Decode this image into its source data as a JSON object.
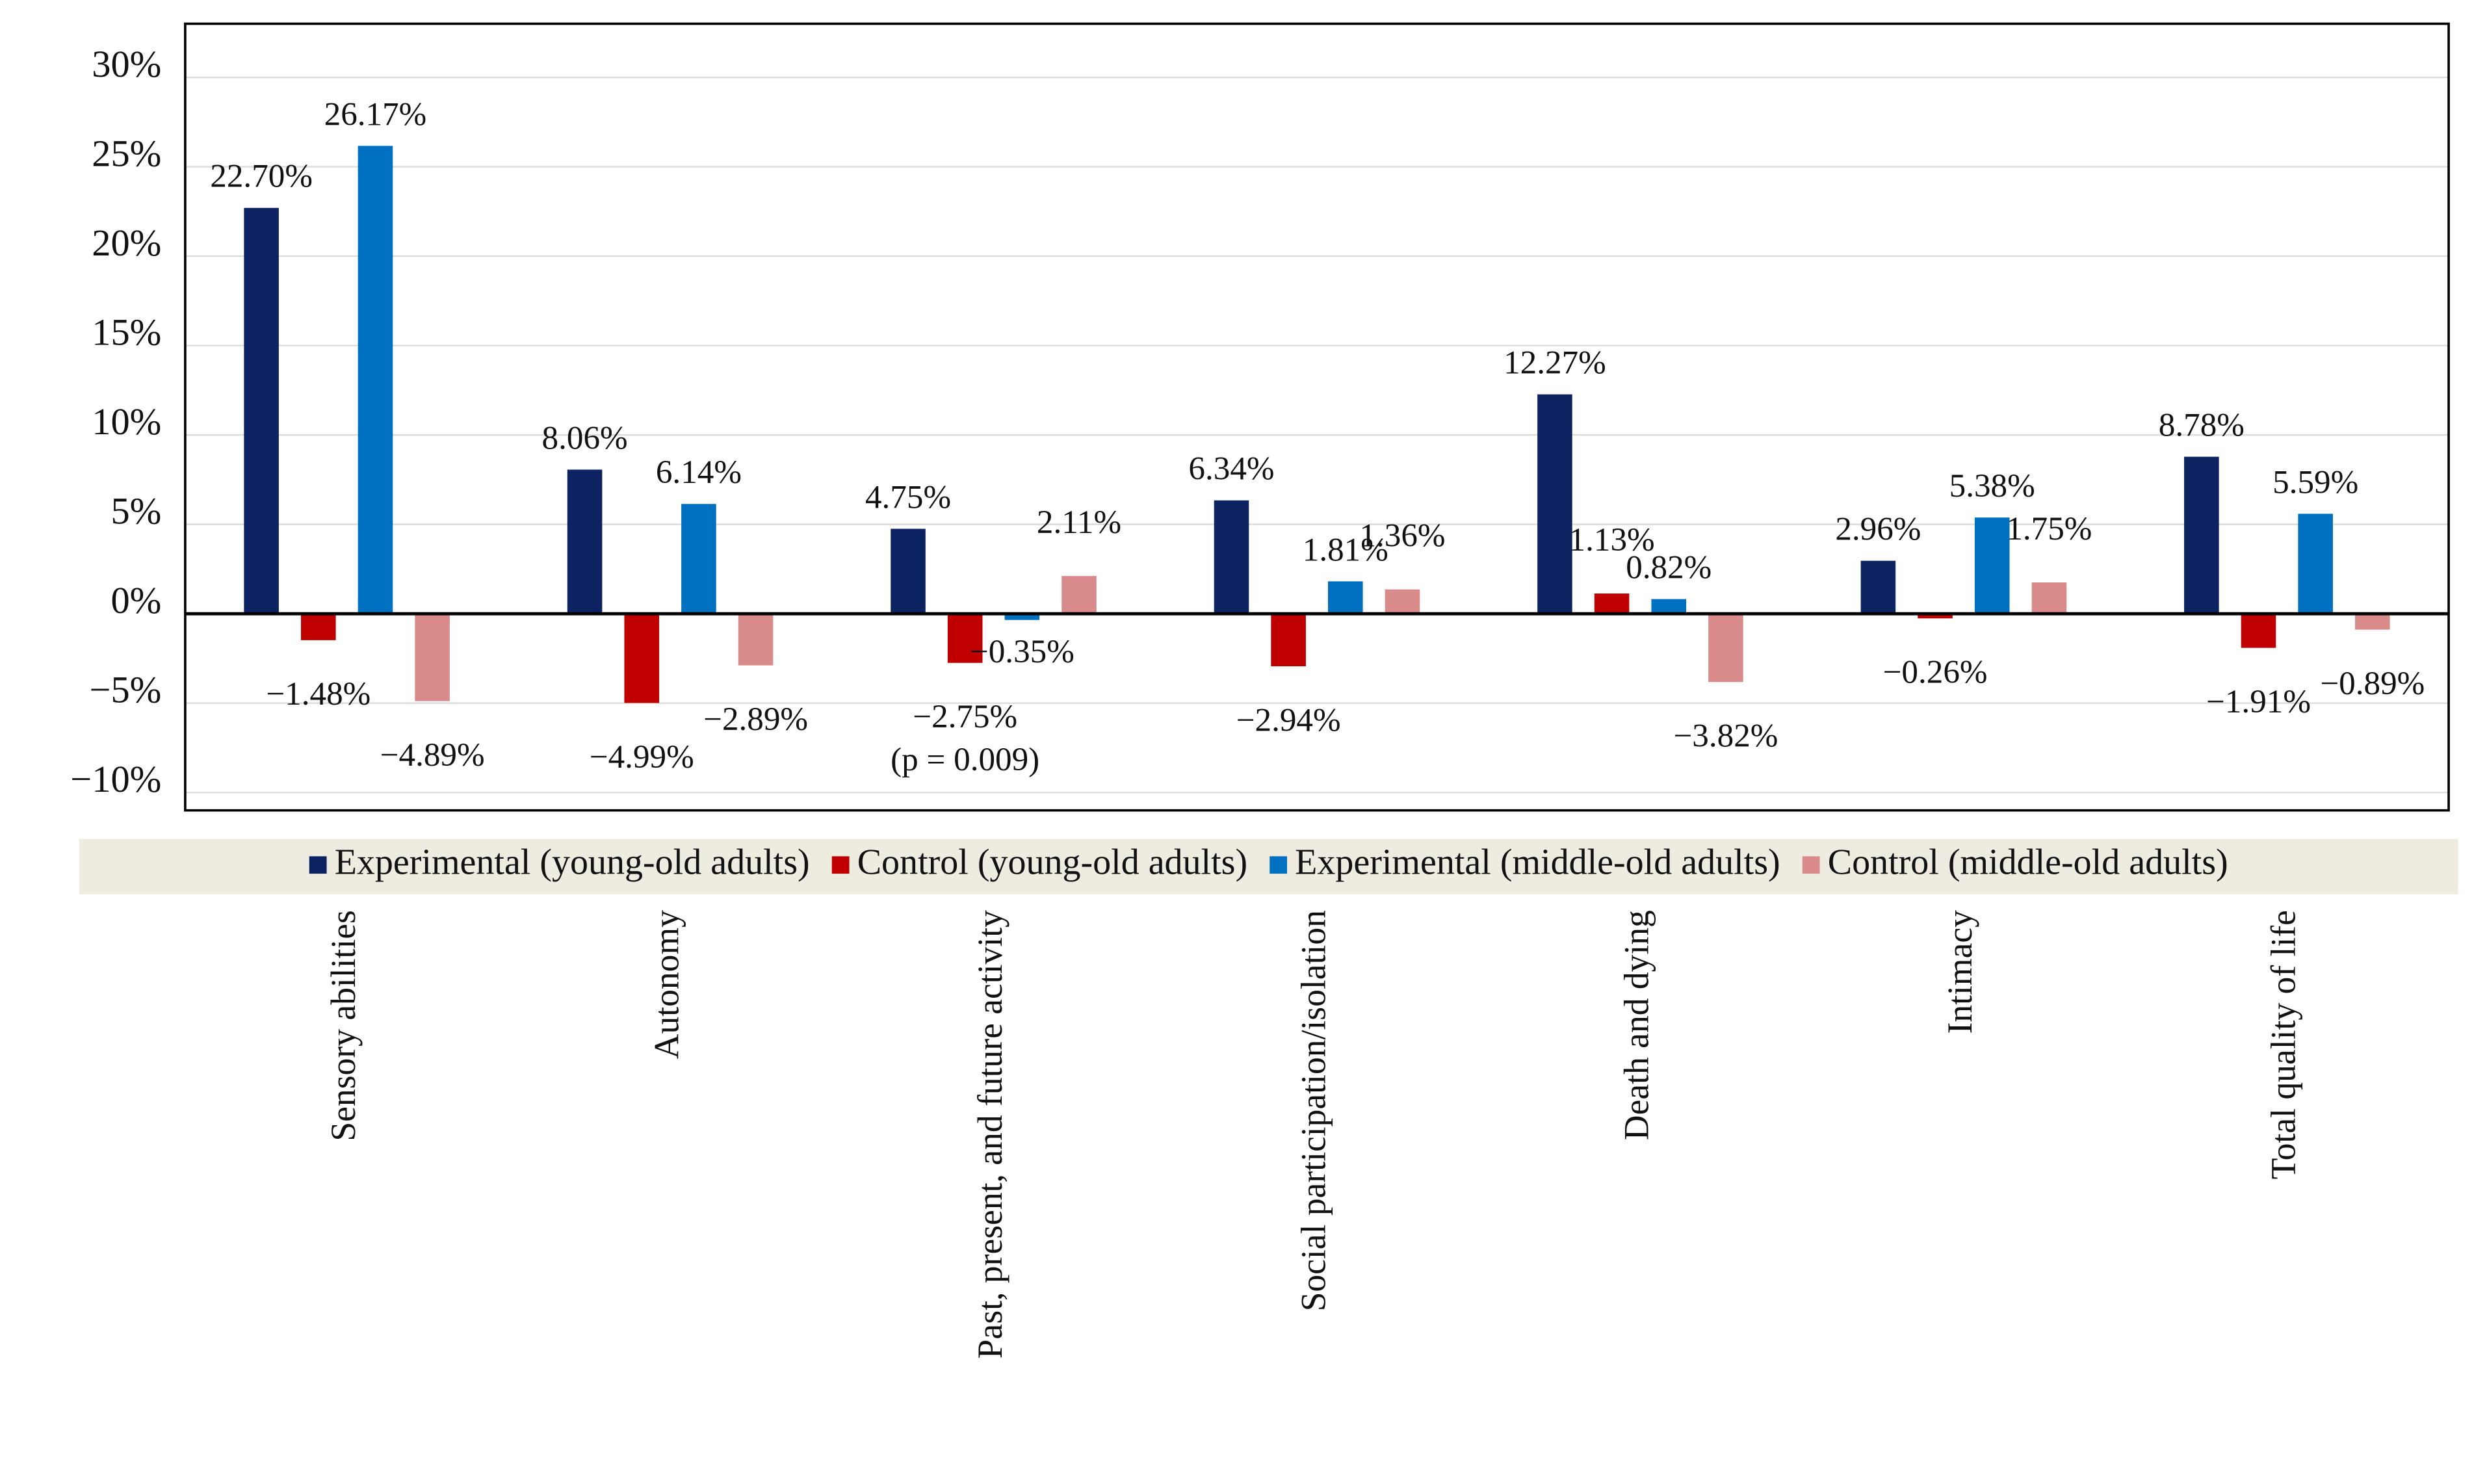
{
  "chart_data": {
    "type": "bar",
    "categories": [
      "Sensory abilities",
      "Autonomy",
      "Past, present, and future activity",
      "Social participation/isolation",
      "Death and dying",
      "Intimacy",
      "Total quality of life"
    ],
    "series": [
      {
        "name": "Experimental (young-old adults)",
        "color": "#0d2361",
        "values": [
          22.7,
          8.06,
          4.75,
          6.34,
          12.27,
          2.96,
          8.78
        ],
        "value_labels": [
          "22.70%",
          "8.06%",
          "4.75%",
          "6.34%",
          "12.27%",
          "2.96%",
          "8.78%"
        ]
      },
      {
        "name": "Control (young-old adults)",
        "color": "#c00000",
        "values": [
          -1.48,
          -4.99,
          -2.75,
          -2.94,
          1.13,
          -0.26,
          -1.91
        ],
        "value_labels": [
          "−1.48%",
          "−4.99%",
          "−2.75%",
          "−2.94%",
          "1.13%",
          "−0.26%",
          "−1.91%"
        ]
      },
      {
        "name": "Experimental (middle-old adults)",
        "color": "#0070c0",
        "values": [
          26.17,
          6.14,
          -0.35,
          1.81,
          0.82,
          5.38,
          5.59
        ],
        "value_labels": [
          "26.17%",
          "6.14%",
          "−0.35%",
          "1.81%",
          "0.82%",
          "5.38%",
          "5.59%"
        ]
      },
      {
        "name": "Control (middle-old adults)",
        "color": "#d98b8b",
        "values": [
          -4.89,
          -2.89,
          2.11,
          1.36,
          -3.82,
          1.75,
          -0.89
        ],
        "value_labels": [
          "−4.89%",
          "−2.89%",
          "2.11%",
          "1.36%",
          "−3.82%",
          "1.75%",
          "−0.89%"
        ]
      }
    ],
    "annotation": "(p = 0.009)",
    "ylim": [
      -11,
      33
    ],
    "yticks": [
      {
        "value": -10,
        "label": "−10%"
      },
      {
        "value": -5,
        "label": "−5%"
      },
      {
        "value": 0,
        "label": "0%"
      },
      {
        "value": 5,
        "label": "5%"
      },
      {
        "value": 10,
        "label": "10%"
      },
      {
        "value": 15,
        "label": "15%"
      },
      {
        "value": 20,
        "label": "20%"
      },
      {
        "value": 25,
        "label": "25%"
      },
      {
        "value": 30,
        "label": "30%"
      }
    ],
    "grid": true
  }
}
